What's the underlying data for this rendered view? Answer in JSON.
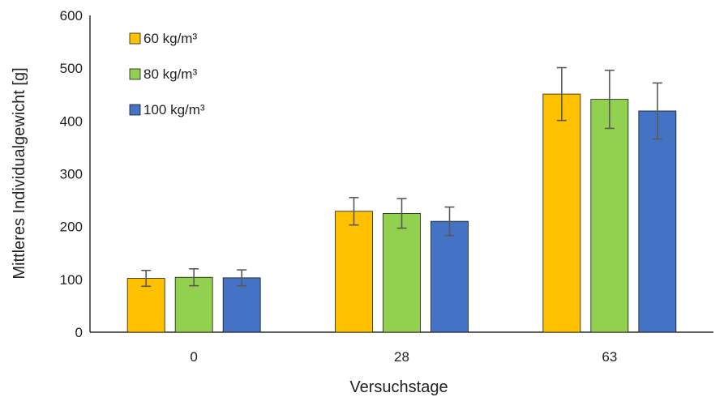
{
  "chart_data": {
    "type": "bar",
    "xlabel": "Versuchstage",
    "ylabel": "Mittleres Individualgewicht [g]",
    "categories": [
      "0",
      "28",
      "63"
    ],
    "ylim": [
      0,
      600
    ],
    "yticks": [
      0,
      100,
      200,
      300,
      400,
      500,
      600
    ],
    "grid": false,
    "legend_position": "top-left",
    "series": [
      {
        "name": "60 kg/m³",
        "color": "#FFC000",
        "values": [
          102,
          229,
          451
        ],
        "errors": [
          15,
          26,
          50
        ]
      },
      {
        "name": "80 kg/m³",
        "color": "#92D050",
        "values": [
          104,
          225,
          441
        ],
        "errors": [
          16,
          28,
          55
        ]
      },
      {
        "name": "100 kg/m³",
        "color": "#4472C4",
        "values": [
          103,
          210,
          419
        ],
        "errors": [
          15,
          27,
          53
        ]
      }
    ]
  }
}
